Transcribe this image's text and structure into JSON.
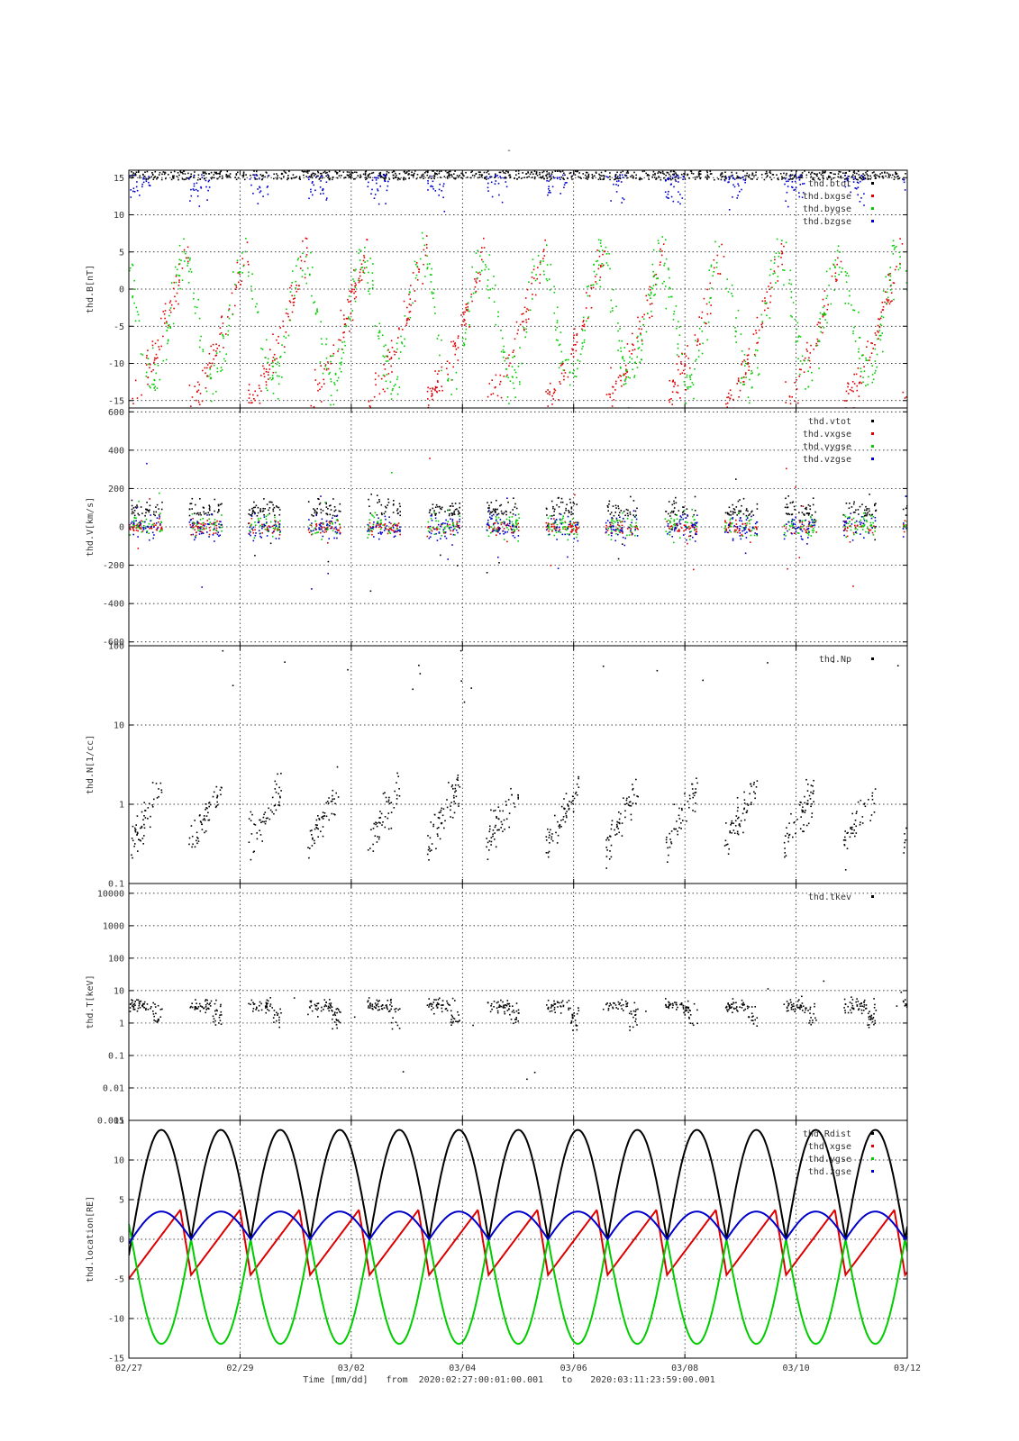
{
  "figure": {
    "title": "-",
    "footer": {
      "prefix": "Time [mm/dd]",
      "from_label": "from",
      "from_value": "2020:02:27:00:01:00.001",
      "to_label": "to",
      "to_value": "2020:03:11:23:59:00.001"
    },
    "x_ticks": [
      "02/27",
      "02/29",
      "03/02",
      "03/04",
      "03/06",
      "03/08",
      "03/10",
      "03/12"
    ],
    "x_range_days": [
      0,
      14
    ]
  },
  "colors": {
    "black": "#000000",
    "red": "#dd0000",
    "green": "#00cc00",
    "blue": "#0000cc"
  },
  "chart_data": [
    {
      "type": "scatter",
      "ylabel": "thd.B[nT]",
      "ylim": [
        -16,
        16
      ],
      "scale": "linear",
      "yticks": [
        15,
        10,
        5,
        0,
        -5,
        -10,
        -15
      ],
      "grid": true,
      "legend_placement": "top-right",
      "series": [
        {
          "name": "thd.btot",
          "color": "black"
        },
        {
          "name": "thd.bxgse",
          "color": "red"
        },
        {
          "name": "thd.bygse",
          "color": "green"
        },
        {
          "name": "thd.bzgse",
          "color": "blue"
        }
      ]
    },
    {
      "type": "scatter",
      "ylabel": "thd.V[km/s]",
      "ylim": [
        -620,
        620
      ],
      "scale": "linear",
      "yticks": [
        600,
        400,
        200,
        0,
        -200,
        -400,
        -600
      ],
      "grid": true,
      "legend_placement": "top-right",
      "series": [
        {
          "name": "thd.vtot",
          "color": "black"
        },
        {
          "name": "thd.vxgse",
          "color": "red"
        },
        {
          "name": "thd.vygse",
          "color": "green"
        },
        {
          "name": "thd.vzgse",
          "color": "blue"
        }
      ]
    },
    {
      "type": "scatter",
      "ylabel": "thd.N[1/cc]",
      "ylim": [
        0.1,
        100
      ],
      "scale": "log",
      "yticks": [
        "100",
        "10",
        "1",
        "0.1"
      ],
      "ytick_values": [
        100,
        10,
        1,
        0.1
      ],
      "grid": true,
      "legend_placement": "top-right",
      "series": [
        {
          "name": "thd.Np",
          "color": "black"
        }
      ]
    },
    {
      "type": "scatter",
      "ylabel": "thd.T[keV]",
      "ylim": [
        0.001,
        20000
      ],
      "scale": "log",
      "yticks": [
        "10000",
        "1000",
        "100",
        "10",
        "1",
        "0.1",
        "0.01",
        "0.001"
      ],
      "ytick_values": [
        10000,
        1000,
        100,
        10,
        1,
        0.1,
        0.01,
        0.001
      ],
      "grid": true,
      "legend_placement": "top-right",
      "series": [
        {
          "name": "thd.tkev",
          "color": "black"
        }
      ]
    },
    {
      "type": "line",
      "ylabel": "thd.location[RE]",
      "ylim": [
        -15,
        15
      ],
      "scale": "linear",
      "yticks": [
        15,
        10,
        5,
        0,
        -5,
        -10,
        -15
      ],
      "grid": true,
      "legend_placement": "top-right",
      "orbit_period_days": 1.07,
      "series": [
        {
          "name": "thd.Rdist",
          "color": "black",
          "peak": 13.8
        },
        {
          "name": "thd.xgse",
          "color": "red",
          "range": [
            -4.5,
            3.7
          ]
        },
        {
          "name": "thd.ygse",
          "color": "green",
          "trough": -13.2
        },
        {
          "name": "thd.zgse",
          "color": "blue",
          "peak": 3.5
        }
      ]
    }
  ]
}
